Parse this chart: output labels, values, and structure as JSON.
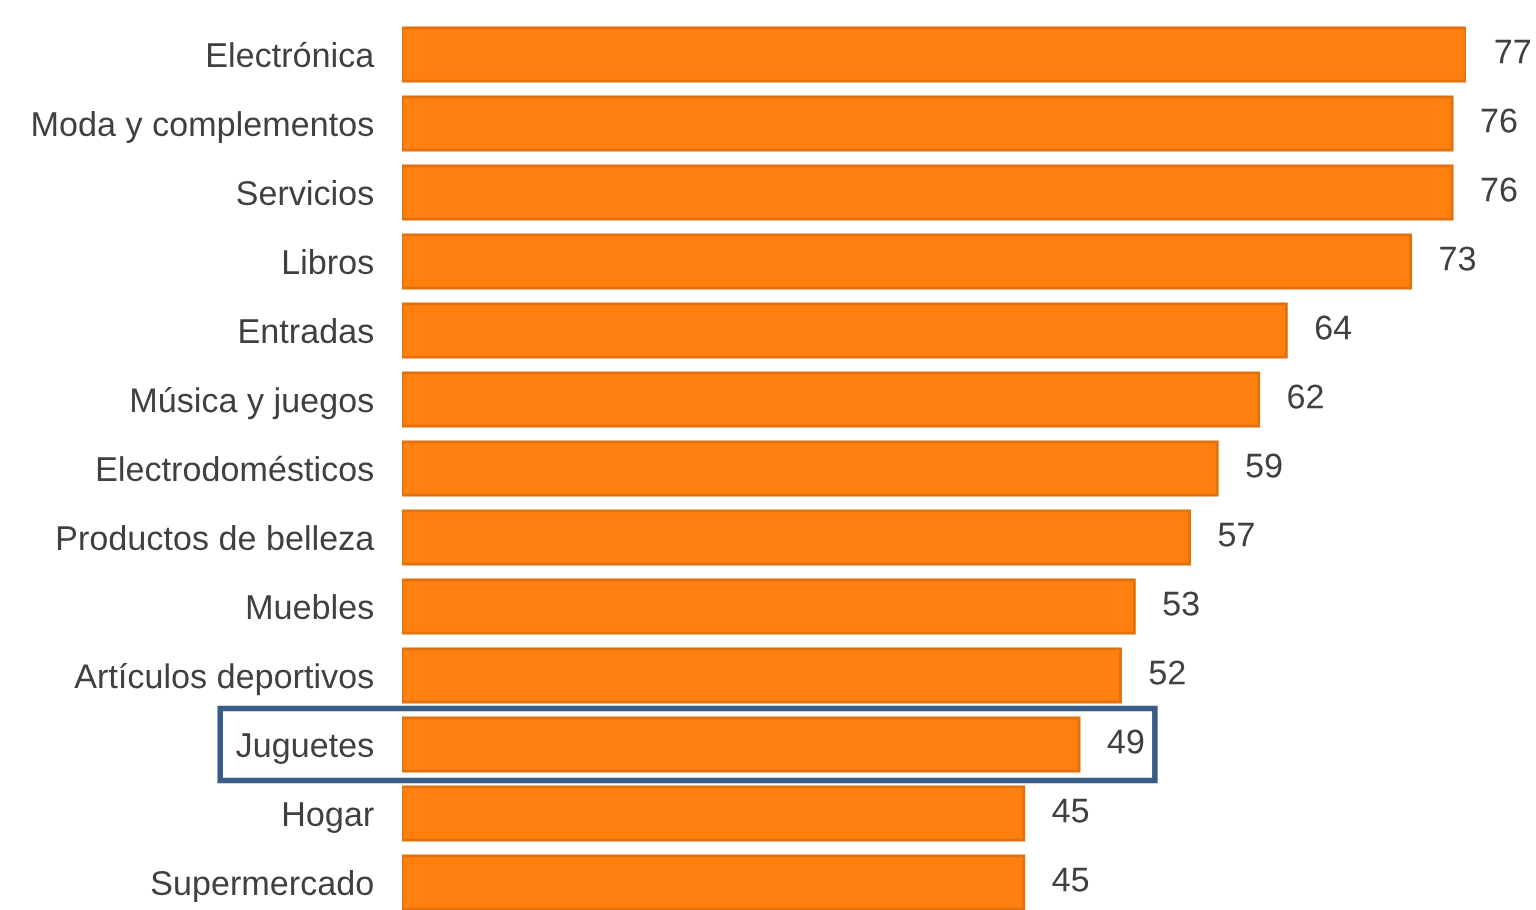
{
  "chart_data": {
    "type": "bar",
    "orientation": "horizontal",
    "categories": [
      "Electrónica",
      "Moda y complementos",
      "Servicios",
      "Libros",
      "Entradas",
      "Música y juegos",
      "Electrodomésticos",
      "Productos de belleza",
      "Muebles",
      "Artículos deportivos",
      "Juguetes",
      "Hogar",
      "Supermercado"
    ],
    "values": [
      77,
      76,
      76,
      73,
      64,
      62,
      59,
      57,
      53,
      52,
      49,
      45,
      45
    ],
    "color": "#ff800e",
    "data_labels": true,
    "tick_labels": "y"
  }
}
